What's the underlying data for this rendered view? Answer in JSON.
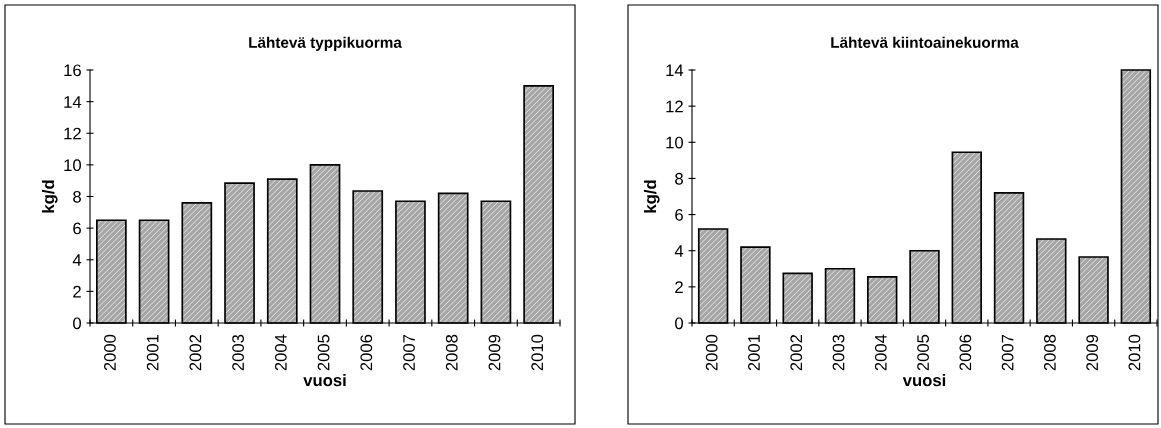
{
  "chart_data": [
    {
      "type": "bar",
      "title": "Lähtevä typpikuorma",
      "xlabel": "vuosi",
      "ylabel": "kg/d",
      "categories": [
        "2000",
        "2001",
        "2002",
        "2003",
        "2004",
        "2005",
        "2006",
        "2007",
        "2008",
        "2009",
        "2010"
      ],
      "values": [
        6.5,
        6.5,
        7.6,
        8.85,
        9.1,
        10.0,
        8.35,
        7.7,
        8.2,
        7.7,
        15.0
      ],
      "color": "#a6a6a6",
      "ylim": [
        0,
        16
      ],
      "yticks": [
        0,
        2,
        4,
        6,
        8,
        10,
        12,
        14,
        16
      ],
      "grid": false
    },
    {
      "type": "bar",
      "title": "Lähtevä kiintoainekuorma",
      "xlabel": "vuosi",
      "ylabel": "kg/d",
      "categories": [
        "2000",
        "2001",
        "2002",
        "2003",
        "2004",
        "2005",
        "2006",
        "2007",
        "2008",
        "2009",
        "2010"
      ],
      "values": [
        5.2,
        4.2,
        2.75,
        3.0,
        2.55,
        4.0,
        9.45,
        7.2,
        4.65,
        3.65,
        14.0
      ],
      "color": "#a6a6a6",
      "ylim": [
        0,
        14
      ],
      "yticks": [
        0,
        2,
        4,
        6,
        8,
        10,
        12,
        14
      ],
      "grid": false
    }
  ]
}
